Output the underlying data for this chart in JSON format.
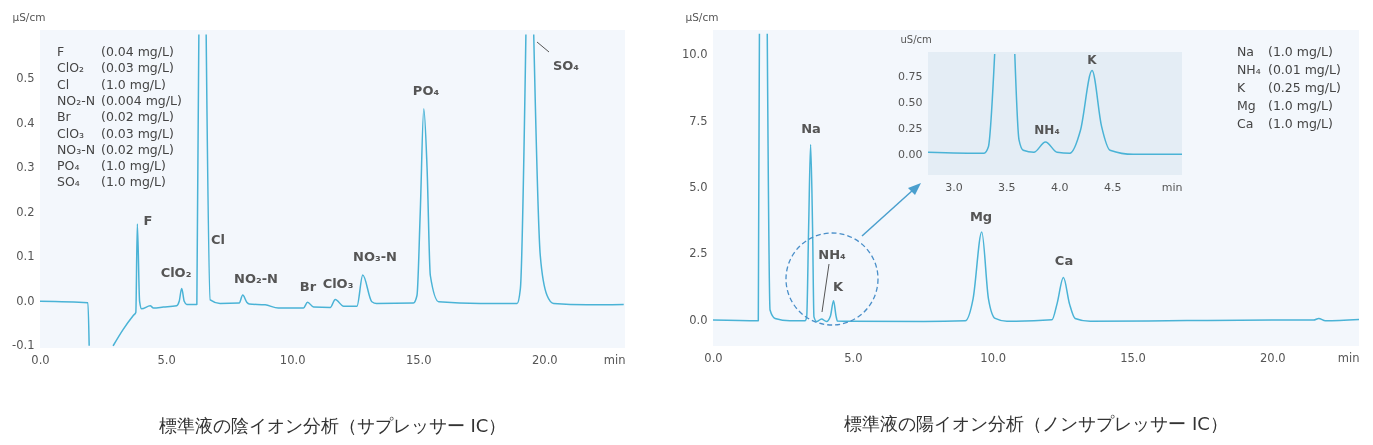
{
  "chart_data": [
    {
      "type": "line",
      "title": "標準液の陰イオン分析（サプレッサー IC）",
      "xlabel": "min",
      "ylabel": "µS/cm",
      "xlim": [
        0,
        23.2
      ],
      "ylim": [
        -0.105,
        0.61
      ],
      "xticks": [
        {
          "value": 0,
          "label": "0.0"
        },
        {
          "value": 5,
          "label": "5.0"
        },
        {
          "value": 10,
          "label": "10.0"
        },
        {
          "value": 15,
          "label": "15.0"
        },
        {
          "value": 20,
          "label": "20.0"
        }
      ],
      "yticks": [
        -0.1,
        {
          "value": 0,
          "label": "0.0"
        },
        0.1,
        0.2,
        0.3,
        0.4,
        0.5
      ],
      "x": [
        0,
        1.9,
        1.95,
        2.5,
        2.9,
        3.3,
        3.7,
        3.8,
        3.86,
        3.95,
        4.03,
        4.37,
        4.5,
        4.89,
        5.42,
        5.52,
        5.62,
        5.72,
        5.82,
        6.22,
        6.3,
        6.45,
        6.59,
        6.75,
        7.14,
        7.9,
        8.04,
        8.2,
        8.3,
        8.93,
        9.45,
        10.45,
        10.61,
        10.85,
        11.51,
        11.71,
        12.04,
        12.57,
        12.8,
        13.16,
        13.35,
        14.81,
        14.95,
        15.08,
        15.22,
        15.35,
        15.48,
        15.81,
        17.46,
        18.92,
        19.05,
        19.27,
        19.42,
        19.58,
        19.84,
        20.11,
        20.37,
        21.69,
        23.15
      ],
      "series": [
        {
          "color": "#4ab3d6",
          "values": [
            0,
            -0.003,
            -0.1,
            null,
            -0.1,
            -0.063,
            -0.032,
            -0.025,
            0.174,
            0,
            -0.017,
            -0.01,
            -0.015,
            -0.013,
            -0.01,
            0,
            0.029,
            0,
            -0.007,
            -0.007,
            0.6,
            null,
            0.6,
            0.003,
            -0.005,
            -0.004,
            0.014,
            -0.002,
            -0.006,
            -0.008,
            -0.015,
            -0.015,
            -0.002,
            -0.013,
            -0.014,
            0.004,
            -0.011,
            -0.011,
            0.059,
            -0.001,
            -0.005,
            -0.004,
            0.013,
            0.2,
            0.433,
            0.3,
            0.058,
            -0.001,
            -0.005,
            -0.005,
            0.028,
            0.6,
            null,
            0.6,
            0.103,
            0.013,
            -0.005,
            -0.008,
            -0.007
          ]
        }
      ],
      "annotations": [
        "F (0.04 mg/L)",
        "ClO₂ (0.03 mg/L)",
        "Cl (1.0 mg/L)",
        "NO₂-N (0.004 mg/L)",
        "Br (0.02 mg/L)",
        "ClO₃ (0.03 mg/L)",
        "NO₃-N (0.02 mg/L)",
        "PO₄ (1.0 mg/L)",
        "SO₄ (1.0 mg/L)",
        "F",
        "ClO₂",
        "Cl",
        "NO₂-N",
        "Br",
        "ClO₃",
        "NO₃-N",
        "PO₄",
        "SO₄"
      ]
    },
    {
      "type": "line",
      "title": "標準液の陽イオン分析（ノンサプレッサー IC）",
      "xlabel": "min",
      "ylabel": "µS/cm",
      "xlim": [
        0,
        23.1
      ],
      "ylim": [
        -0.98,
        10.94
      ],
      "xticks": [
        {
          "value": 0,
          "label": "0.0"
        },
        {
          "value": 5,
          "label": "5.0"
        },
        {
          "value": 10,
          "label": "10.0"
        },
        {
          "value": 15,
          "label": "15.0"
        },
        {
          "value": 20,
          "label": "20.0"
        }
      ],
      "yticks": [
        {
          "value": 0,
          "label": "0.0"
        },
        2.5,
        {
          "value": 5,
          "label": "5.0"
        },
        7.5,
        {
          "value": 10,
          "label": "10.0"
        }
      ],
      "x": [
        0,
        1.62,
        1.66,
        1.8,
        1.94,
        2.04,
        2.22,
        2.75,
        3.29,
        3.35,
        3.42,
        3.49,
        3.56,
        3.61,
        3.71,
        3.88,
        4.06,
        4.2,
        4.31,
        4.4,
        4.45,
        4.9,
        7.53,
        9.02,
        9.3,
        9.61,
        9.85,
        10.09,
        10.51,
        12.12,
        12.3,
        12.53,
        12.75,
        12.95,
        13.49,
        16.95,
        20.53,
        21.48,
        21.66,
        21.9,
        23.1
      ],
      "series": [
        {
          "color": "#4ab3d6",
          "values": [
            0,
            -0.03,
            10.8,
            null,
            10.8,
            0.38,
            0.06,
            -0.03,
            -0.03,
            0.12,
            3.5,
            6.62,
            3.5,
            0.12,
            -0.06,
            0.04,
            -0.06,
            0.15,
            0.73,
            0.15,
            -0.04,
            -0.05,
            -0.06,
            -0.03,
            0.8,
            3.32,
            0.8,
            0.06,
            -0.05,
            0.01,
            0.6,
            1.6,
            0.6,
            0.06,
            -0.05,
            -0.02,
            0,
            0,
            0.06,
            -0.03,
            0.02
          ]
        }
      ],
      "annotations": [
        "Na (1.0 mg/L)",
        "NH₄ (0.01 mg/L)",
        "K (0.25 mg/L)",
        "Mg (1.0 mg/L)",
        "Ca (1.0 mg/L)",
        "Na",
        "NH₄",
        "K",
        "Mg",
        "Ca"
      ]
    },
    {
      "type": "line",
      "xlabel": "min",
      "ylabel": "uS/cm",
      "xlim": [
        2.76,
        5.16
      ],
      "ylim": [
        -0.2,
        0.99
      ],
      "xticks": [
        {
          "value": 3,
          "label": "3.0"
        },
        3.5,
        {
          "value": 4,
          "label": "4.0"
        },
        4.5
      ],
      "yticks": [
        {
          "value": 0,
          "label": "0.00"
        },
        0.25,
        {
          "value": 0.5,
          "label": "0.50"
        },
        0.75
      ],
      "x": [
        2.76,
        3.29,
        3.33,
        3.39,
        3.48,
        3.58,
        3.62,
        3.66,
        3.76,
        3.87,
        3.98,
        4.1,
        4.2,
        4.31,
        4.4,
        4.48,
        4.7,
        5.16
      ],
      "series": [
        {
          "color": "#4ab3d6",
          "values": [
            0.02,
            0.01,
            0.07,
            0.97,
            null,
            0.97,
            0.14,
            0.04,
            0.02,
            0.12,
            0.02,
            0.01,
            0.23,
            0.81,
            0.27,
            0.04,
            0,
            0
          ]
        }
      ],
      "annotations": [
        "NH₄",
        "K"
      ]
    }
  ]
}
